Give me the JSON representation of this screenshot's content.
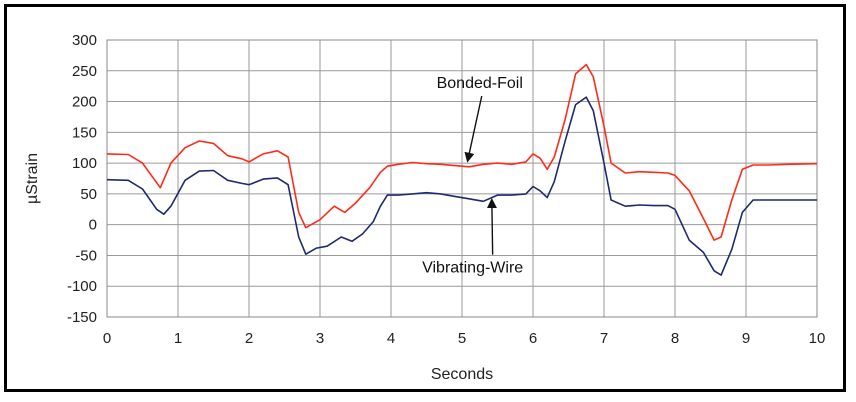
{
  "chart_data": {
    "type": "line",
    "title": "",
    "xlabel": "Seconds",
    "ylabel": "µStrain",
    "xlim": [
      0,
      10
    ],
    "ylim": [
      -150,
      300
    ],
    "x_ticks": [
      "0",
      "1",
      "2",
      "3",
      "4",
      "5",
      "6",
      "7",
      "8",
      "9",
      "10"
    ],
    "y_ticks": [
      "300",
      "250",
      "200",
      "150",
      "100",
      "50",
      "0",
      "-50",
      "-100",
      "-150"
    ],
    "grid": true,
    "legend": "none",
    "series": [
      {
        "name": "Bonded-Foil",
        "color": "#ff2a1a",
        "x": [
          0,
          0.3,
          0.5,
          0.75,
          0.9,
          1.1,
          1.3,
          1.5,
          1.7,
          1.9,
          2.0,
          2.2,
          2.4,
          2.55,
          2.7,
          2.8,
          3.0,
          3.2,
          3.35,
          3.5,
          3.7,
          3.85,
          3.95,
          4.1,
          4.3,
          4.5,
          4.7,
          4.9,
          5.1,
          5.3,
          5.5,
          5.7,
          5.9,
          6.0,
          6.1,
          6.2,
          6.3,
          6.45,
          6.6,
          6.75,
          6.85,
          7.0,
          7.1,
          7.3,
          7.5,
          7.7,
          7.9,
          8.0,
          8.2,
          8.4,
          8.55,
          8.65,
          8.8,
          8.95,
          9.1,
          9.3,
          9.6,
          10.0
        ],
        "y": [
          115,
          114,
          100,
          60,
          100,
          125,
          136,
          132,
          112,
          107,
          102,
          115,
          120,
          110,
          20,
          -5,
          8,
          30,
          20,
          35,
          60,
          85,
          95,
          98,
          101,
          99,
          98,
          96,
          94,
          98,
          100,
          98,
          102,
          115,
          108,
          90,
          110,
          170,
          245,
          260,
          240,
          160,
          100,
          84,
          86,
          85,
          84,
          80,
          55,
          10,
          -25,
          -20,
          40,
          90,
          97,
          97,
          98,
          99
        ]
      },
      {
        "name": "Vibrating-Wire",
        "color": "#1f2a6e",
        "x": [
          0,
          0.3,
          0.5,
          0.7,
          0.8,
          0.9,
          1.1,
          1.3,
          1.5,
          1.7,
          1.9,
          2.0,
          2.2,
          2.4,
          2.55,
          2.7,
          2.8,
          2.95,
          3.1,
          3.3,
          3.45,
          3.6,
          3.75,
          3.85,
          3.95,
          4.1,
          4.3,
          4.5,
          4.7,
          4.9,
          5.1,
          5.3,
          5.5,
          5.7,
          5.9,
          6.0,
          6.1,
          6.2,
          6.3,
          6.45,
          6.6,
          6.75,
          6.85,
          7.0,
          7.1,
          7.3,
          7.5,
          7.7,
          7.9,
          8.0,
          8.2,
          8.4,
          8.55,
          8.65,
          8.8,
          8.95,
          9.1,
          9.3,
          9.6,
          10.0
        ],
        "y": [
          73,
          72,
          58,
          25,
          17,
          30,
          72,
          87,
          88,
          72,
          67,
          65,
          74,
          76,
          65,
          -20,
          -48,
          -38,
          -35,
          -20,
          -27,
          -15,
          5,
          30,
          48,
          48,
          50,
          52,
          50,
          46,
          42,
          38,
          48,
          48,
          50,
          62,
          55,
          44,
          70,
          135,
          195,
          207,
          185,
          100,
          40,
          30,
          32,
          31,
          31,
          25,
          -25,
          -45,
          -75,
          -82,
          -40,
          20,
          40,
          40,
          40,
          40
        ]
      }
    ],
    "annotations": [
      {
        "text": "Bonded-Foil",
        "x": 5.25,
        "y": 222,
        "arrow_to": [
          5.08,
          104
        ]
      },
      {
        "text": "Vibrating-Wire",
        "x": 5.15,
        "y": -78,
        "arrow_to": [
          5.42,
          40
        ]
      }
    ]
  }
}
